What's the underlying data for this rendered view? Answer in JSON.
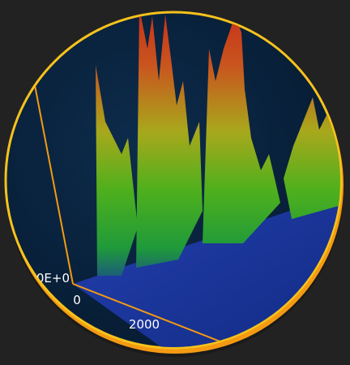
{
  "z_axis": {
    "origin_label": "0E+0"
  },
  "x_axis": {
    "tick_labels": [
      "0",
      "2000"
    ]
  }
}
